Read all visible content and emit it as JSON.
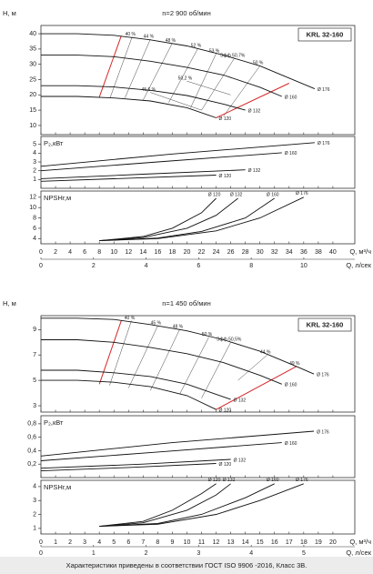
{
  "chart_data": [
    {
      "type": "line",
      "title": "n=2 900 об/мин",
      "model": "KRL 32-160",
      "xlabel": "Q, м³/ч",
      "x2label": "Q, л/сек",
      "xlim": [
        0,
        43
      ],
      "xticks": [
        0,
        2,
        4,
        6,
        8,
        10,
        12,
        14,
        16,
        18,
        20,
        22,
        24,
        26,
        28,
        30,
        32,
        34,
        36,
        38,
        40
      ],
      "x2lim": [
        0,
        11.94
      ],
      "x2ticks": [
        0,
        2,
        4,
        6,
        8,
        10
      ],
      "panels": [
        {
          "ylabel": "H, м",
          "ylim": [
            7,
            42.7
          ],
          "yticks": [
            10,
            15,
            20,
            25,
            30,
            35,
            40
          ],
          "series": [
            {
              "name": "Ø 176",
              "color": "#111111",
              "x": [
                0,
                5,
                10,
                15,
                20,
                25,
                30,
                35,
                37.5
              ],
              "values": [
                40,
                40,
                39.5,
                38,
                36,
                33,
                29.5,
                24.5,
                22
              ]
            },
            {
              "name": "Ø 160",
              "color": "#111111",
              "x": [
                0,
                5,
                10,
                15,
                20,
                25,
                30,
                33
              ],
              "values": [
                33,
                33,
                32.5,
                31,
                29,
                26.5,
                22.5,
                19.5
              ]
            },
            {
              "name": "Ø 132",
              "color": "#111111",
              "x": [
                0,
                5,
                10,
                15,
                20,
                25,
                28
              ],
              "values": [
                23,
                23,
                22.6,
                21.5,
                19.8,
                17,
                15
              ]
            },
            {
              "name": "Ø 120",
              "color": "#111111",
              "x": [
                0,
                5,
                10,
                15,
                20,
                24
              ],
              "values": [
                19.5,
                19.5,
                19,
                18,
                15.8,
                12.5
              ]
            }
          ],
          "limits": [
            {
              "color": "#d62728",
              "x": [
                8,
                11
              ],
              "values": [
                19.3,
                39.3
              ]
            },
            {
              "color": "#d62728",
              "x": [
                24,
                34
              ],
              "values": [
                12.5,
                23.8
              ]
            }
          ],
          "efficiency": [
            {
              "label": "40 %",
              "x": [
                12.5,
                9.5
              ],
              "values": [
                39,
                19.2
              ]
            },
            {
              "label": "44 %",
              "x": [
                15,
                11.5
              ],
              "values": [
                38.2,
                19
              ]
            },
            {
              "label": "48 %",
              "x": [
                18,
                14
              ],
              "values": [
                36.9,
                18.3
              ]
            },
            {
              "label": "52 %",
              "x": [
                21.5,
                17.5
              ],
              "values": [
                35.2,
                17.5
              ]
            },
            {
              "label": "53 %",
              "x": [
                24,
                20.5
              ],
              "values": [
                33.5,
                15.8
              ]
            },
            {
              "label": "Эфф 50,7%",
              "x": [
                26.5,
                22
              ],
              "values": [
                32,
                15
              ]
            },
            {
              "label": "50 %",
              "x": [
                30,
                25
              ],
              "values": [
                29.5,
                13
              ]
            },
            {
              "label": "50,2 %",
              "x": [
                20,
                26
              ],
              "values": [
                24.5,
                20
              ]
            },
            {
              "label": "45,6 %",
              "x": [
                15,
                22
              ],
              "values": [
                20.8,
                15
              ]
            }
          ]
        },
        {
          "ylabel": "P₂,кВт",
          "ylim": [
            0,
            5.9
          ],
          "yticks": [
            1,
            2,
            3,
            4,
            5
          ],
          "series": [
            {
              "name": "Ø 176",
              "color": "#111111",
              "x": [
                0,
                18,
                37.5
              ],
              "values": [
                2.5,
                3.9,
                5.2
              ]
            },
            {
              "name": "Ø 160",
              "color": "#111111",
              "x": [
                0,
                16,
                33
              ],
              "values": [
                2,
                3,
                4.05
              ]
            },
            {
              "name": "Ø 132",
              "color": "#111111",
              "x": [
                0,
                14,
                28
              ],
              "values": [
                1.1,
                1.6,
                2.1
              ]
            },
            {
              "name": "Ø 120",
              "color": "#111111",
              "x": [
                0,
                12,
                24
              ],
              "values": [
                0.8,
                1.15,
                1.5
              ]
            }
          ]
        },
        {
          "ylabel": "NPSHr,м",
          "ylim": [
            3,
            13.2
          ],
          "yticks": [
            4,
            6,
            8,
            10,
            12
          ],
          "series": [
            {
              "name": "Ø 176",
              "color": "#111111",
              "x": [
                8,
                16,
                24,
                30,
                36
              ],
              "values": [
                3.6,
                4,
                5.5,
                8,
                12
              ]
            },
            {
              "name": "Ø 160",
              "color": "#111111",
              "x": [
                8,
                16,
                22,
                28,
                32
              ],
              "values": [
                3.6,
                4.1,
                5.4,
                8,
                11.8
              ]
            },
            {
              "name": "Ø 132",
              "color": "#111111",
              "x": [
                8,
                14,
                20,
                24,
                27
              ],
              "values": [
                3.6,
                4.2,
                6,
                8.5,
                11.8
              ]
            },
            {
              "name": "Ø 120",
              "color": "#111111",
              "x": [
                8,
                14,
                18,
                22,
                24
              ],
              "values": [
                3.6,
                4.4,
                6,
                9,
                11.8
              ]
            }
          ]
        }
      ]
    },
    {
      "type": "line",
      "title": "n=1 450 об/мин",
      "model": "KRL 32-160",
      "xlabel": "Q, м³/ч",
      "x2label": "Q, л/сек",
      "xlim": [
        0,
        21.5
      ],
      "xticks": [
        0,
        1,
        2,
        3,
        4,
        5,
        6,
        7,
        8,
        9,
        10,
        11,
        12,
        13,
        14,
        15,
        16,
        17,
        18,
        19,
        20
      ],
      "x2lim": [
        0,
        5.97
      ],
      "x2ticks": [
        0,
        1,
        2,
        3,
        4,
        5
      ],
      "panels": [
        {
          "ylabel": "H, м",
          "ylim": [
            2.5,
            10.1
          ],
          "yticks": [
            3,
            5,
            7,
            9
          ],
          "series": [
            {
              "name": "Ø 176",
              "color": "#111111",
              "x": [
                0,
                2.5,
                5,
                7.5,
                10,
                12.5,
                15,
                17.5,
                18.7
              ],
              "values": [
                9.9,
                9.9,
                9.8,
                9.4,
                8.9,
                8.2,
                7.3,
                6.1,
                5.5
              ]
            },
            {
              "name": "Ø 160",
              "color": "#111111",
              "x": [
                0,
                2.5,
                5,
                7.5,
                10,
                12.5,
                15,
                16.5
              ],
              "values": [
                8.2,
                8.2,
                8,
                7.6,
                7.1,
                6.4,
                5.4,
                4.7
              ]
            },
            {
              "name": "Ø 132",
              "color": "#111111",
              "x": [
                0,
                2.5,
                5,
                7.5,
                10,
                13
              ],
              "values": [
                5.8,
                5.8,
                5.6,
                5.3,
                4.7,
                3.5
              ]
            },
            {
              "name": "Ø 120",
              "color": "#111111",
              "x": [
                0,
                2.5,
                5,
                7.5,
                10,
                12
              ],
              "values": [
                5,
                5,
                4.85,
                4.5,
                3.8,
                2.7
              ]
            }
          ],
          "limits": [
            {
              "color": "#d62728",
              "x": [
                4,
                5.5
              ],
              "values": [
                4.7,
                9.7
              ]
            },
            {
              "color": "#d62728",
              "x": [
                12,
                17.5
              ],
              "values": [
                2.7,
                6.1
              ]
            }
          ],
          "efficiency": [
            {
              "label": "40 %",
              "x": [
                6.2,
                4.7
              ],
              "values": [
                9.7,
                4.6
              ]
            },
            {
              "label": "45 %",
              "x": [
                8,
                6
              ],
              "values": [
                9.3,
                4.4
              ]
            },
            {
              "label": "48 %",
              "x": [
                9.5,
                7.5
              ],
              "values": [
                9,
                4.2
              ]
            },
            {
              "label": "50 %",
              "x": [
                11.5,
                9.5
              ],
              "values": [
                8.4,
                3.9
              ]
            },
            {
              "label": "Эфф 50,5%",
              "x": [
                13,
                11
              ],
              "values": [
                8,
                3.6
              ]
            },
            {
              "label": "44 %",
              "x": [
                15.5,
                13.5
              ],
              "values": [
                7,
                5
              ]
            },
            {
              "label": "49 %",
              "x": [
                17.5,
                12
              ],
              "values": [
                6.1,
                2.7
              ]
            }
          ]
        },
        {
          "ylabel": "P₂,кВт",
          "ylim": [
            0,
            0.92
          ],
          "yticks": [
            {
              "value": 0.2,
              "label": "0,2"
            },
            {
              "value": 0.4,
              "label": "0,4"
            },
            {
              "value": 0.6,
              "label": "0,6"
            },
            {
              "value": 0.8,
              "label": "0,8"
            }
          ],
          "series": [
            {
              "name": "Ø 176",
              "color": "#111111",
              "x": [
                0,
                9,
                18.7
              ],
              "values": [
                0.32,
                0.52,
                0.69
              ]
            },
            {
              "name": "Ø 160",
              "color": "#111111",
              "x": [
                0,
                8,
                16.5
              ],
              "values": [
                0.25,
                0.38,
                0.52
              ]
            },
            {
              "name": "Ø 132",
              "color": "#111111",
              "x": [
                0,
                7,
                13
              ],
              "values": [
                0.14,
                0.2,
                0.27
              ]
            },
            {
              "name": "Ø 120",
              "color": "#111111",
              "x": [
                0,
                6,
                12
              ],
              "values": [
                0.1,
                0.15,
                0.21
              ]
            }
          ]
        },
        {
          "ylabel": "NPSHr,м",
          "ylim": [
            0.6,
            4.45
          ],
          "yticks": [
            1,
            2,
            3,
            4
          ],
          "series": [
            {
              "name": "Ø 176",
              "color": "#111111",
              "x": [
                4,
                8,
                12,
                15,
                18
              ],
              "values": [
                1.15,
                1.3,
                2,
                3,
                4.2
              ]
            },
            {
              "name": "Ø 160",
              "color": "#111111",
              "x": [
                4,
                8,
                11,
                14,
                16
              ],
              "values": [
                1.15,
                1.35,
                2,
                3.2,
                4.2
              ]
            },
            {
              "name": "Ø 132",
              "color": "#111111",
              "x": [
                4,
                7,
                10,
                12,
                13
              ],
              "values": [
                1.15,
                1.4,
                2.3,
                3.4,
                4.2
              ]
            },
            {
              "name": "Ø 120",
              "color": "#111111",
              "x": [
                4,
                7,
                9,
                11,
                12
              ],
              "values": [
                1.15,
                1.5,
                2.3,
                3.5,
                4.2
              ]
            }
          ]
        }
      ]
    }
  ],
  "footer": "Характеристики приведены в соответствии  ГОСТ ISO 9906 -2016, Класс 3В."
}
